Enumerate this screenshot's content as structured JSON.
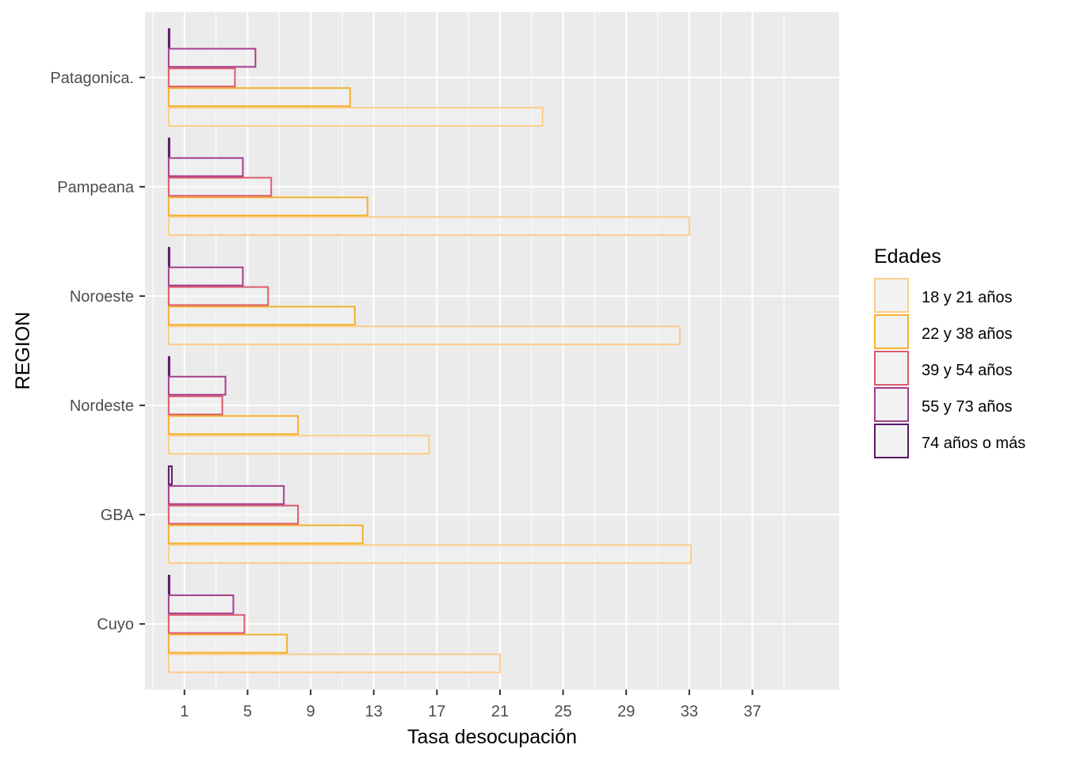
{
  "chart_data": {
    "type": "bar",
    "orientation": "horizontal",
    "title": "",
    "xlabel": "Tasa desocupación",
    "ylabel": "REGION",
    "xlim": [
      -1.5,
      42.5
    ],
    "x_ticks": [
      1,
      5,
      9,
      13,
      17,
      21,
      25,
      29,
      33,
      37
    ],
    "bar_baseline": 0,
    "grid": true,
    "legend_position": "right",
    "legend_title": "Edades",
    "categories": [
      "Cuyo",
      "GBA",
      "Nordeste",
      "Noroeste",
      "Pampeana",
      "Patagonica."
    ],
    "series": [
      {
        "name": "18 y 21 años",
        "color": "#FCCD88",
        "values": [
          21.0,
          33.1,
          16.5,
          32.4,
          33.0,
          23.7
        ]
      },
      {
        "name": "22 y 38 años",
        "color": "#F4B12C",
        "values": [
          7.5,
          12.3,
          8.2,
          11.8,
          12.6,
          11.5
        ]
      },
      {
        "name": "39 y 54 años",
        "color": "#DC5A6C",
        "values": [
          4.8,
          8.2,
          3.4,
          6.3,
          6.5,
          4.2
        ]
      },
      {
        "name": "55 y 73 años",
        "color": "#A43D8C",
        "values": [
          4.1,
          7.3,
          3.6,
          4.7,
          4.7,
          5.5
        ]
      },
      {
        "name": "74 años o más",
        "color": "#5A1668",
        "values": [
          0.05,
          0.2,
          0.05,
          0.05,
          0.05,
          0.05
        ]
      }
    ]
  }
}
